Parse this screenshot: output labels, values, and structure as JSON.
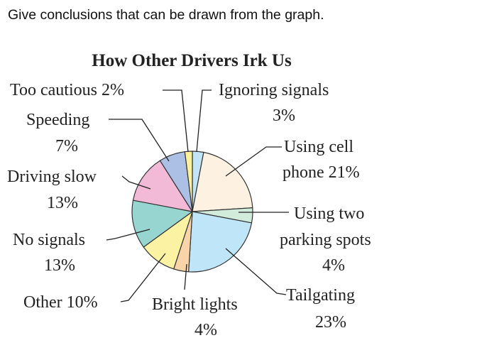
{
  "question": "Give conclusions that can be drawn from the graph.",
  "chart_data": {
    "type": "pie",
    "title": "How Other Drivers Irk Us",
    "slices": [
      {
        "label": "Ignoring signals",
        "value": 3,
        "color": "#c3e4f6"
      },
      {
        "label": "Using cell phone",
        "value": 21,
        "color": "#fdf1e1"
      },
      {
        "label": "Using two parking spots",
        "value": 4,
        "color": "#d2ecdc"
      },
      {
        "label": "Tailgating",
        "value": 23,
        "color": "#bfe5f9"
      },
      {
        "label": "Bright lights",
        "value": 4,
        "color": "#f8d4a8"
      },
      {
        "label": "Other",
        "value": 10,
        "color": "#fcf2a3"
      },
      {
        "label": "No signals",
        "value": 13,
        "color": "#97d5d0"
      },
      {
        "label": "Driving slow",
        "value": 13,
        "color": "#f2bad7"
      },
      {
        "label": "Speeding",
        "value": 7,
        "color": "#abc0e4"
      },
      {
        "label": "Too cautious",
        "value": 2,
        "color": "#fbf09c"
      }
    ],
    "labels": {
      "too_cautious": "Too cautious 2%",
      "ignoring_1": "Ignoring signals",
      "ignoring_2": "3%",
      "speeding_1": "Speeding",
      "speeding_2": "7%",
      "cell_1": "Using cell",
      "cell_2": "phone 21%",
      "slow_1": "Driving slow",
      "slow_2": "13%",
      "parking_1": "Using two",
      "parking_2": "parking spots",
      "parking_3": "4%",
      "nosig_1": "No signals",
      "nosig_2": "13%",
      "other": "Other 10%",
      "bright_1": "Bright lights",
      "bright_2": "4%",
      "tail_1": "Tailgating",
      "tail_2": "23%"
    }
  }
}
